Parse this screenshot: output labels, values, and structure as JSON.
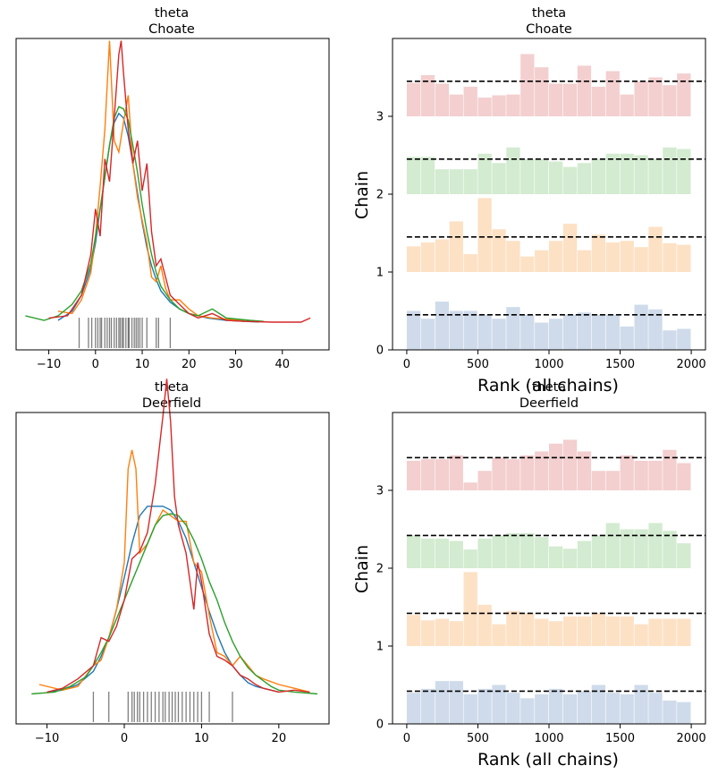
{
  "colors": {
    "chain0": "#1f77b4",
    "chain1": "#ff7f0e",
    "chain2": "#2ca02c",
    "chain3": "#d62728",
    "bar0": "#cfdbea",
    "bar1": "#fde1c5",
    "bar2": "#d3ebd0",
    "bar3": "#f3cfcf",
    "rug": "#000000",
    "dashed": "#000000"
  },
  "chart_data": [
    {
      "type": "line",
      "id": "kde-choate",
      "title": [
        "theta",
        "Choate"
      ],
      "xlabel": "",
      "ylabel": "",
      "xlim": [
        -17,
        50
      ],
      "xticks": [
        -10,
        0,
        10,
        20,
        30,
        40
      ],
      "ylim": [
        -0.012,
        0.125
      ],
      "series": [
        {
          "name": "chain 0",
          "x": [
            -8,
            -5,
            -3,
            -1,
            0,
            1,
            2,
            3,
            4,
            5,
            6,
            7,
            8,
            9,
            10,
            11,
            12,
            13,
            14,
            16,
            18,
            20,
            24,
            28,
            32,
            35
          ],
          "y": [
            0.001,
            0.005,
            0.012,
            0.024,
            0.035,
            0.05,
            0.064,
            0.078,
            0.088,
            0.092,
            0.09,
            0.082,
            0.07,
            0.057,
            0.044,
            0.033,
            0.025,
            0.019,
            0.014,
            0.009,
            0.006,
            0.004,
            0.002,
            0.001,
            0.0005,
            0.0003
          ]
        },
        {
          "name": "chain 1",
          "x": [
            -8,
            -5,
            -3,
            -1,
            0,
            1,
            2,
            3,
            4,
            5,
            6,
            7,
            8,
            9,
            10,
            11,
            12,
            13,
            14,
            15,
            16,
            18,
            20,
            22,
            25,
            28,
            32
          ],
          "y": [
            0.005,
            0.004,
            0.01,
            0.022,
            0.038,
            0.06,
            0.085,
            0.124,
            0.08,
            0.075,
            0.088,
            0.1,
            0.07,
            0.055,
            0.045,
            0.035,
            0.02,
            0.018,
            0.025,
            0.015,
            0.01,
            0.01,
            0.006,
            0.003,
            0.002,
            0.0015,
            0.001
          ]
        },
        {
          "name": "chain 2",
          "x": [
            -15,
            -11,
            -8,
            -5,
            -3,
            -1,
            0,
            1,
            2,
            3,
            4,
            5,
            6,
            7,
            8,
            9,
            10,
            11,
            12,
            13,
            14,
            16,
            18,
            20,
            22,
            25,
            28,
            33,
            36
          ],
          "y": [
            0.003,
            0.001,
            0.003,
            0.008,
            0.014,
            0.026,
            0.038,
            0.05,
            0.064,
            0.078,
            0.09,
            0.095,
            0.094,
            0.089,
            0.078,
            0.066,
            0.052,
            0.04,
            0.03,
            0.022,
            0.016,
            0.01,
            0.006,
            0.004,
            0.003,
            0.006,
            0.002,
            0.001,
            0.0005
          ]
        },
        {
          "name": "chain 3",
          "x": [
            -10,
            -6,
            -3,
            -1,
            0,
            1,
            2,
            3,
            4,
            5,
            5.5,
            6,
            7,
            8,
            9,
            10,
            11,
            12,
            13,
            14,
            16,
            18,
            20,
            22,
            25,
            28,
            32,
            38,
            44,
            46
          ],
          "y": [
            0.002,
            0.003,
            0.012,
            0.03,
            0.05,
            0.038,
            0.072,
            0.062,
            0.09,
            0.118,
            0.124,
            0.11,
            0.085,
            0.07,
            0.08,
            0.058,
            0.07,
            0.04,
            0.025,
            0.028,
            0.012,
            0.008,
            0.004,
            0.002,
            0.004,
            0.001,
            0.0005,
            0.0002,
            0.0002,
            0.002
          ]
        }
      ],
      "rug": [
        -3.5,
        -1.5,
        -0.8,
        0,
        0.5,
        1,
        1.3,
        2,
        2.5,
        3,
        3.4,
        4,
        4.5,
        5,
        5.3,
        5.7,
        6,
        6.5,
        7,
        7.2,
        7.8,
        8.3,
        8.7,
        9.1,
        9.5,
        10,
        11,
        13,
        13.5,
        16
      ]
    },
    {
      "type": "bar",
      "id": "rank-choate",
      "title": [
        "theta",
        "Choate"
      ],
      "xlabel": "Rank (all chains)",
      "ylabel": "Chain",
      "xlim": [
        -100,
        2100
      ],
      "xticks": [
        0,
        500,
        1000,
        1500,
        2000
      ],
      "ylim": [
        0,
        4
      ],
      "yticks": [
        0,
        1,
        2,
        3
      ],
      "bin_width": 100,
      "dashed_level": 0.45,
      "series": [
        {
          "name": "chain 0",
          "heights": [
            0.5,
            0.4,
            0.62,
            0.5,
            0.5,
            0.45,
            0.4,
            0.55,
            0.45,
            0.35,
            0.4,
            0.45,
            0.48,
            0.45,
            0.45,
            0.3,
            0.58,
            0.52,
            0.25,
            0.27
          ]
        },
        {
          "name": "chain 1",
          "heights": [
            0.33,
            0.38,
            0.42,
            0.65,
            0.23,
            0.95,
            0.55,
            0.4,
            0.2,
            0.28,
            0.4,
            0.62,
            0.28,
            0.48,
            0.38,
            0.4,
            0.32,
            0.58,
            0.37,
            0.35
          ]
        },
        {
          "name": "chain 2",
          "heights": [
            0.48,
            0.48,
            0.32,
            0.32,
            0.32,
            0.52,
            0.4,
            0.6,
            0.45,
            0.45,
            0.42,
            0.35,
            0.4,
            0.45,
            0.52,
            0.52,
            0.5,
            0.45,
            0.6,
            0.58
          ]
        },
        {
          "name": "chain 3",
          "heights": [
            0.43,
            0.53,
            0.42,
            0.28,
            0.38,
            0.24,
            0.27,
            0.28,
            0.8,
            0.63,
            0.42,
            0.42,
            0.65,
            0.38,
            0.58,
            0.28,
            0.45,
            0.5,
            0.4,
            0.55
          ]
        }
      ]
    },
    {
      "type": "line",
      "id": "kde-deerfield",
      "title": [
        "theta",
        "Deerfield"
      ],
      "xlabel": "",
      "ylabel": "",
      "xlim": [
        -14,
        26.5
      ],
      "xticks": [
        -10,
        0,
        10,
        20
      ],
      "ylim": [
        -0.016,
        0.15
      ],
      "series": [
        {
          "name": "chain 0",
          "x": [
            -10,
            -8,
            -6,
            -4,
            -3,
            -2,
            -1,
            0,
            1,
            2,
            3,
            4,
            5,
            6,
            7,
            8,
            9,
            10,
            11,
            12,
            13,
            14,
            15,
            16,
            17,
            18,
            19,
            20
          ],
          "y": [
            0.001,
            0.002,
            0.005,
            0.012,
            0.02,
            0.03,
            0.045,
            0.062,
            0.08,
            0.095,
            0.1,
            0.1,
            0.1,
            0.098,
            0.092,
            0.083,
            0.07,
            0.057,
            0.044,
            0.032,
            0.022,
            0.015,
            0.01,
            0.006,
            0.004,
            0.003,
            0.002,
            0.001
          ]
        },
        {
          "name": "chain 1",
          "x": [
            -11,
            -8,
            -6,
            -4,
            -3,
            -2,
            -1,
            0,
            0.5,
            1,
            1.5,
            2,
            3,
            4,
            5,
            6,
            7,
            8,
            9,
            10,
            11,
            12,
            13,
            14,
            15,
            16,
            17,
            18,
            20,
            22,
            24
          ],
          "y": [
            0.005,
            0.002,
            0.004,
            0.015,
            0.018,
            0.03,
            0.045,
            0.07,
            0.12,
            0.13,
            0.12,
            0.075,
            0.08,
            0.09,
            0.098,
            0.095,
            0.092,
            0.092,
            0.07,
            0.065,
            0.042,
            0.022,
            0.02,
            0.015,
            0.02,
            0.015,
            0.01,
            0.008,
            0.005,
            0.003,
            0.001
          ]
        },
        {
          "name": "chain 2",
          "x": [
            -12,
            -9,
            -7,
            -5,
            -4,
            -3,
            -2,
            -1,
            0,
            1,
            2,
            3,
            4,
            5,
            6,
            7,
            8,
            9,
            10,
            11,
            12,
            13,
            14,
            15,
            16,
            17,
            18,
            19,
            20,
            22,
            25
          ],
          "y": [
            0,
            0.001,
            0.004,
            0.009,
            0.015,
            0.022,
            0.03,
            0.04,
            0.05,
            0.06,
            0.07,
            0.08,
            0.09,
            0.095,
            0.096,
            0.095,
            0.09,
            0.082,
            0.072,
            0.06,
            0.05,
            0.038,
            0.028,
            0.02,
            0.014,
            0.01,
            0.007,
            0.004,
            0.002,
            0.001,
            0
          ]
        },
        {
          "name": "chain 3",
          "x": [
            -10,
            -8,
            -6,
            -4,
            -3,
            -2,
            -1,
            0,
            1,
            2,
            3,
            4,
            5,
            5.5,
            6,
            6.5,
            7,
            8,
            9,
            9.5,
            10,
            11,
            12,
            13,
            14,
            15,
            16,
            17,
            18,
            19,
            20,
            22,
            24
          ],
          "y": [
            0.001,
            0.003,
            0.008,
            0.015,
            0.03,
            0.028,
            0.036,
            0.05,
            0.072,
            0.076,
            0.086,
            0.112,
            0.148,
            0.168,
            0.145,
            0.105,
            0.09,
            0.075,
            0.045,
            0.07,
            0.06,
            0.032,
            0.02,
            0.018,
            0.015,
            0.01,
            0.008,
            0.005,
            0.003,
            0.002,
            0.001,
            0.002,
            0.001
          ]
        }
      ],
      "rug": [
        -4,
        -2,
        0.5,
        1,
        1.3,
        1.7,
        2,
        2.5,
        3,
        3.5,
        4,
        4.5,
        5,
        5.3,
        5.8,
        6.2,
        6.6,
        7,
        7.5,
        8,
        8.5,
        9,
        9.5,
        10,
        11,
        14
      ]
    },
    {
      "type": "bar",
      "id": "rank-deerfield",
      "title": [
        "theta",
        "Deerfield"
      ],
      "xlabel": "Rank (all chains)",
      "ylabel": "Chain",
      "xlim": [
        -100,
        2100
      ],
      "xticks": [
        0,
        500,
        1000,
        1500,
        2000
      ],
      "ylim": [
        0,
        4
      ],
      "yticks": [
        0,
        1,
        2,
        3
      ],
      "bin_width": 100,
      "dashed_level": 0.42,
      "series": [
        {
          "name": "chain 0",
          "heights": [
            0.4,
            0.45,
            0.55,
            0.55,
            0.38,
            0.45,
            0.5,
            0.4,
            0.33,
            0.38,
            0.45,
            0.38,
            0.42,
            0.5,
            0.4,
            0.38,
            0.5,
            0.4,
            0.3,
            0.28
          ]
        },
        {
          "name": "chain 1",
          "heights": [
            0.4,
            0.33,
            0.35,
            0.32,
            0.95,
            0.53,
            0.28,
            0.45,
            0.42,
            0.35,
            0.32,
            0.38,
            0.38,
            0.42,
            0.38,
            0.38,
            0.28,
            0.35,
            0.35,
            0.35
          ]
        },
        {
          "name": "chain 2",
          "heights": [
            0.42,
            0.38,
            0.38,
            0.35,
            0.24,
            0.38,
            0.42,
            0.45,
            0.45,
            0.4,
            0.28,
            0.25,
            0.35,
            0.42,
            0.58,
            0.5,
            0.5,
            0.58,
            0.48,
            0.32
          ]
        },
        {
          "name": "chain 3",
          "heights": [
            0.38,
            0.4,
            0.4,
            0.45,
            0.1,
            0.25,
            0.42,
            0.4,
            0.45,
            0.5,
            0.6,
            0.65,
            0.5,
            0.25,
            0.25,
            0.45,
            0.38,
            0.38,
            0.52,
            0.35
          ]
        }
      ]
    }
  ]
}
